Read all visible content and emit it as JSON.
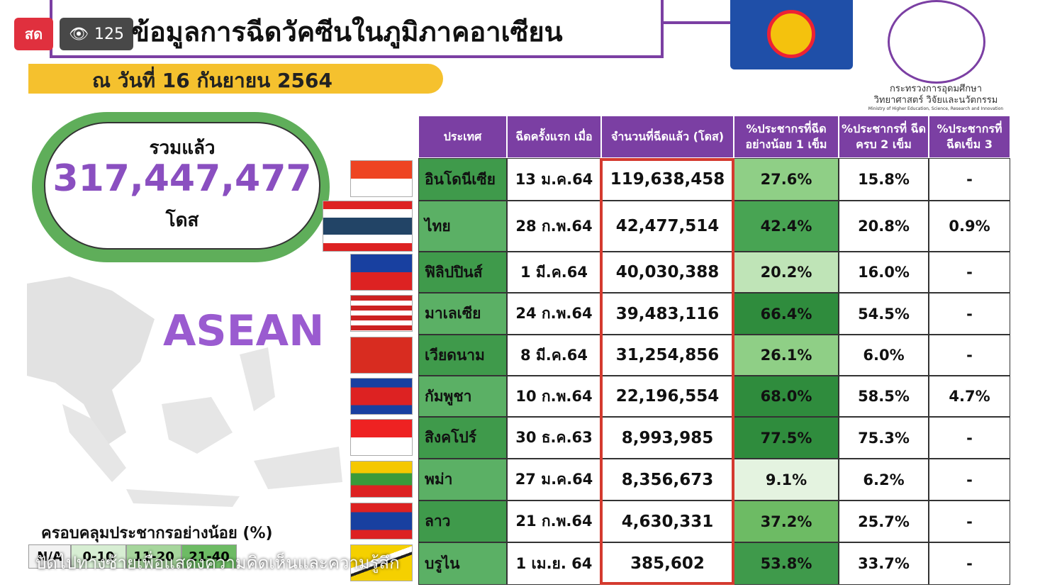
{
  "live": {
    "badge": "สด",
    "views": "125"
  },
  "header": {
    "title": "ข้อมูลการฉีดวัคซีนในภูมิภาคอาเซียน",
    "date": "ณ วันที่ 16 กันยายน 2564"
  },
  "ministry": {
    "line1": "กระทรวงการอุดมศึกษา",
    "line2": "วิทยาศาสตร์ วิจัยและนวัตกรรม",
    "line3": "Ministry of Higher Education, Science, Research and Innovation"
  },
  "total": {
    "label": "รวมแล้ว",
    "value": "317,447,477",
    "unit": "โดส"
  },
  "region": "ASEAN",
  "legend": {
    "title": "ครอบคลุมประชากรอย่างน้อย (%)",
    "items": [
      "N/A",
      "0-10",
      "11-20",
      "21-40"
    ]
  },
  "overlay": "ปัดไปทางซ้ายเพื่อแสดงความคิดเห็นและความรู้สึก",
  "table": {
    "header": [
      "ประเทศ",
      "ฉีดครั้งแรก เมื่อ",
      "จำนวนที่ฉีดแล้ว (โดส)",
      "%ประชากรที่ฉีด อย่างน้อย 1 เข็ม",
      "%ประชากรที่ ฉีดครบ 2 เข็ม",
      "%ประชากรที่ ฉีดเข็ม 3"
    ],
    "rows": [
      [
        "อินโดนีเซีย",
        "13 ม.ค.64",
        "119,638,458",
        "27.6%",
        "15.8%",
        "-"
      ],
      [
        "ไทย",
        "28 ก.พ.64",
        "42,477,514",
        "42.4%",
        "20.8%",
        "0.9%"
      ],
      [
        "ฟิลิปปินส์",
        "1 มี.ค.64",
        "40,030,388",
        "20.2%",
        "16.0%",
        "-"
      ],
      [
        "มาเลเซีย",
        "24 ก.พ.64",
        "39,483,116",
        "66.4%",
        "54.5%",
        "-"
      ],
      [
        "เวียดนาม",
        "8 มี.ค.64",
        "31,254,856",
        "26.1%",
        "6.0%",
        "-"
      ],
      [
        "กัมพูชา",
        "10 ก.พ.64",
        "22,196,554",
        "68.0%",
        "58.5%",
        "4.7%"
      ],
      [
        "สิงคโปร์",
        "30 ธ.ค.63",
        "8,993,985",
        "77.5%",
        "75.3%",
        "-"
      ],
      [
        "พม่า",
        "27 ม.ค.64",
        "8,356,673",
        "9.1%",
        "6.2%",
        "-"
      ],
      [
        "ลาว",
        "21 ก.พ.64",
        "4,630,331",
        "37.2%",
        "25.7%",
        "-"
      ],
      [
        "บรูไน",
        "1 เม.ย. 64",
        "385,602",
        "53.8%",
        "33.7%",
        "-"
      ]
    ]
  }
}
